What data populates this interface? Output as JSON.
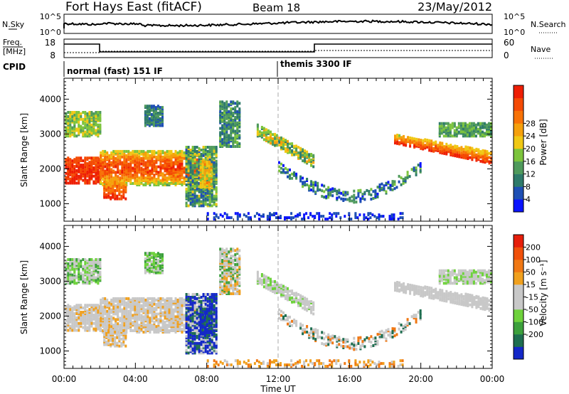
{
  "header": {
    "station": "Fort Hays East (fitACF)",
    "beam": "Beam 18",
    "date": "23/May/2012"
  },
  "panels": {
    "noise": {
      "left_label": "N.Sky",
      "right_label": "N.Search",
      "left_ticks": [
        "10^5",
        "10^0"
      ],
      "right_ticks": [
        "10^5",
        "10^0"
      ]
    },
    "freq": {
      "left_label_1": "Freq.",
      "left_label_2": "[MHz]",
      "right_label": "Nave",
      "left_ticks": [
        "18",
        "8"
      ],
      "right_ticks": [
        "60",
        "0"
      ]
    },
    "cpid": {
      "label": "CPID",
      "mode_1": "normal (fast) 151 IF",
      "mode_2": "themis 3300 IF"
    }
  },
  "chart_data": [
    {
      "type": "heatmap",
      "name": "power",
      "ylabel": "Slant Range [km]",
      "xlabel": "Time UT",
      "xlim": [
        0,
        24
      ],
      "ylim": [
        500,
        4600
      ],
      "x_ticks": [
        "00:00",
        "04:00",
        "08:00",
        "12:00",
        "16:00",
        "20:00",
        "00:00"
      ],
      "y_ticks": [
        1000,
        2000,
        3000,
        4000
      ],
      "colorbar": {
        "label": "Power [dB]",
        "ticks": [
          "4",
          "8",
          "12",
          "16",
          "20",
          "24",
          "28"
        ],
        "colors": [
          "#0a14ff",
          "#1e4fb4",
          "#2e7a6a",
          "#4f9a5c",
          "#7cc43c",
          "#f0c814",
          "#f5a00c",
          "#f87206",
          "#f44a04",
          "#ee1e04"
        ]
      }
    },
    {
      "type": "heatmap",
      "name": "velocity",
      "ylabel": "Slant Range [km]",
      "xlabel": "Time UT",
      "xlim": [
        0,
        24
      ],
      "ylim": [
        500,
        4600
      ],
      "x_ticks": [
        "00:00",
        "04:00",
        "08:00",
        "12:00",
        "16:00",
        "20:00",
        "00:00"
      ],
      "y_ticks": [
        1000,
        2000,
        3000,
        4000
      ],
      "colorbar": {
        "label": "Velocity [m s⁻¹]",
        "ticks": [
          "200",
          "100",
          "50",
          "15",
          "-15",
          "-50",
          "-100",
          "-200"
        ],
        "colors": [
          "#1428c8",
          "#1e6e50",
          "#3ca03c",
          "#6ed23c",
          "#c8c8c8",
          "#c8c8c8",
          "#f0a01e",
          "#f07814",
          "#f0500a",
          "#e61e0a"
        ]
      }
    }
  ]
}
